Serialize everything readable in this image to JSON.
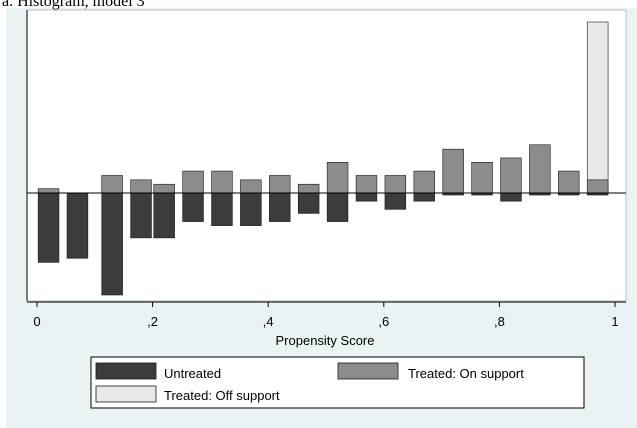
{
  "title": "a. Histogram, model 3",
  "chart_data": {
    "type": "bar",
    "title": "a. Histogram, model 3",
    "xlabel": "Propensity Score",
    "ylabel": "",
    "xlim": [
      -0.02,
      1.0
    ],
    "ylim": [
      -0.25,
      0.42
    ],
    "x_tick_labels": [
      "0",
      ",2",
      ",4",
      ",6",
      ",8",
      "1"
    ],
    "x_ticks": [
      0,
      0.2,
      0.4,
      0.6,
      0.8,
      1.0
    ],
    "bin_width": 0.04,
    "grid": false,
    "legend_position": "bottom",
    "colors": {
      "untreated": "#3c3c3c",
      "treated_on": "#8c8c8c",
      "treated_off": "#e8e8e8",
      "outline": "#1a1a1a"
    },
    "series": [
      {
        "name": "Untreated",
        "x": [
          0.02,
          0.07,
          0.13,
          0.18,
          0.22,
          0.27,
          0.32,
          0.37,
          0.42,
          0.47,
          0.52,
          0.57,
          0.62,
          0.67,
          0.72,
          0.77,
          0.82,
          0.87,
          0.92,
          0.97
        ],
        "values": [
          -0.17,
          -0.16,
          -0.25,
          -0.11,
          -0.11,
          -0.07,
          -0.08,
          -0.08,
          -0.07,
          -0.05,
          -0.07,
          -0.02,
          -0.04,
          -0.02,
          -0.005,
          -0.005,
          -0.02,
          -0.005,
          -0.005,
          -0.005
        ]
      },
      {
        "name": "Treated: On support",
        "x": [
          0.02,
          0.07,
          0.13,
          0.18,
          0.22,
          0.27,
          0.32,
          0.37,
          0.42,
          0.47,
          0.52,
          0.57,
          0.62,
          0.67,
          0.72,
          0.77,
          0.82,
          0.87,
          0.92,
          0.97
        ],
        "values": [
          0.01,
          0.0,
          0.04,
          0.03,
          0.02,
          0.05,
          0.05,
          0.03,
          0.04,
          0.02,
          0.07,
          0.04,
          0.04,
          0.05,
          0.1,
          0.07,
          0.08,
          0.11,
          0.05,
          0.03
        ]
      },
      {
        "name": "Treated: Off support",
        "x": [
          0.97
        ],
        "values": [
          0.39
        ]
      }
    ],
    "legend": [
      "Untreated",
      "Treated: On support",
      "Treated: Off support"
    ]
  }
}
